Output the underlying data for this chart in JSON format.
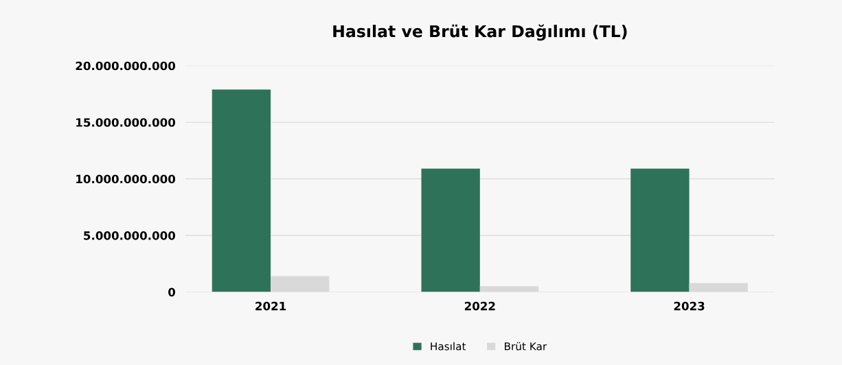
{
  "chart_data": {
    "type": "bar",
    "title": "Hasılat ve Brüt Kar Dağılımı (TL)",
    "categories": [
      "2021",
      "2022",
      "2023"
    ],
    "series": [
      {
        "name": "Hasılat",
        "color": "#2e7359",
        "values": [
          17900000000,
          10900000000,
          10900000000
        ]
      },
      {
        "name": "Brüt Kar",
        "color": "#d9d9d9",
        "values": [
          1400000000,
          500000000,
          800000000
        ]
      }
    ],
    "ylim": [
      0,
      20000000000
    ],
    "yticks": [
      {
        "value": 0,
        "label": "0"
      },
      {
        "value": 5000000000,
        "label": "5.000.000.000"
      },
      {
        "value": 10000000000,
        "label": "10.000.000.000"
      },
      {
        "value": 15000000000,
        "label": "15.000.000.000"
      },
      {
        "value": 20000000000,
        "label": "20.000.000.000"
      }
    ],
    "grid": "y",
    "legend": "bottom"
  }
}
